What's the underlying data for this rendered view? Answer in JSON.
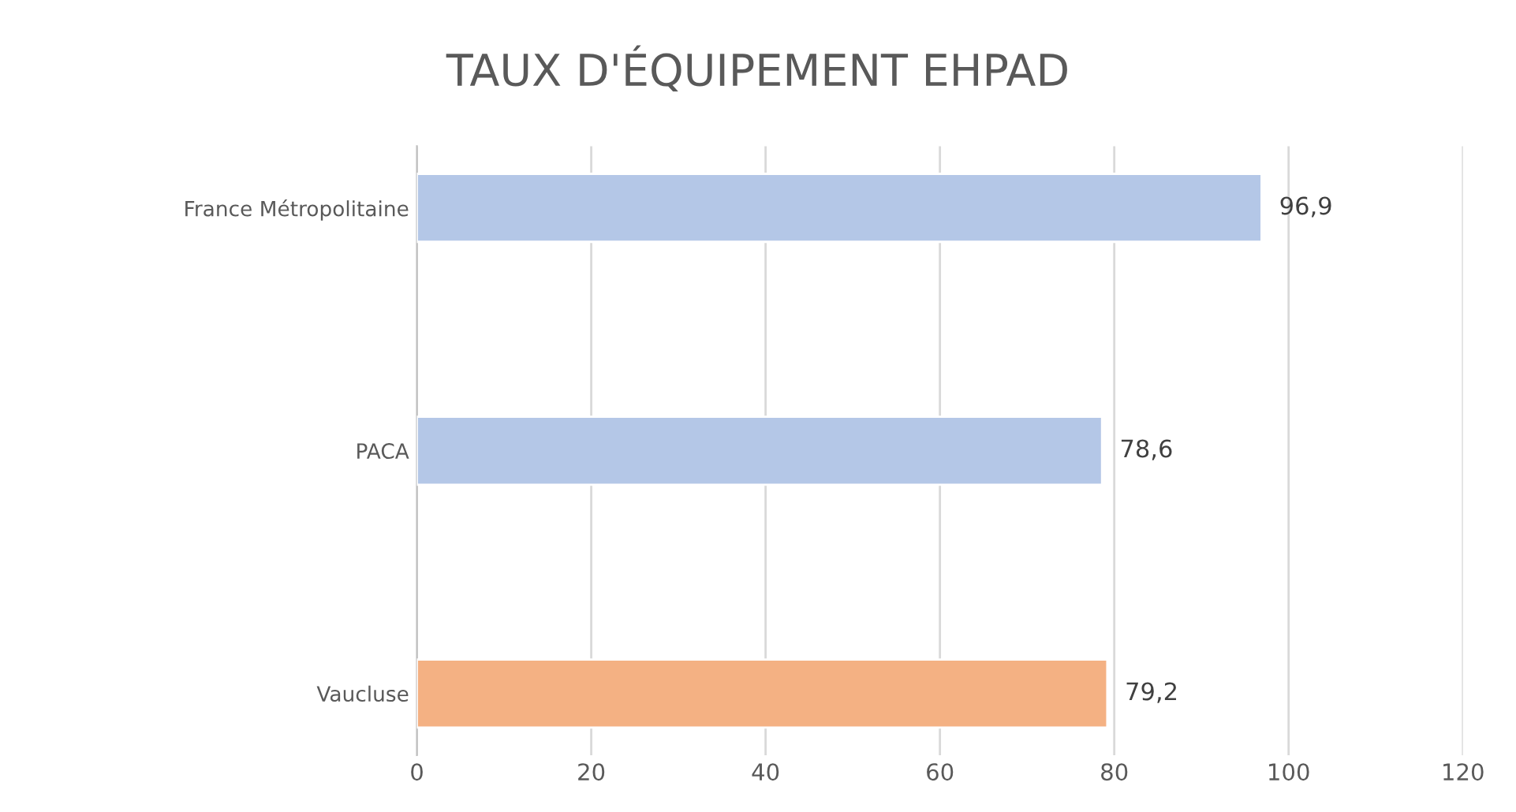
{
  "chart_data": {
    "type": "bar",
    "orientation": "horizontal",
    "title": "TAUX D'ÉQUIPEMENT EHPAD",
    "categories": [
      "France Métropolitaine",
      "PACA",
      "Vaucluse"
    ],
    "values": [
      96.9,
      78.6,
      79.2
    ],
    "colors": [
      "#b4c7e7",
      "#b4c7e7",
      "#f4b183"
    ],
    "value_labels": [
      "96,9",
      "78,6",
      "79,2"
    ],
    "xlim": [
      0,
      120
    ],
    "xticks": [
      0,
      20,
      40,
      60,
      80,
      100,
      120
    ],
    "grid": "x"
  }
}
